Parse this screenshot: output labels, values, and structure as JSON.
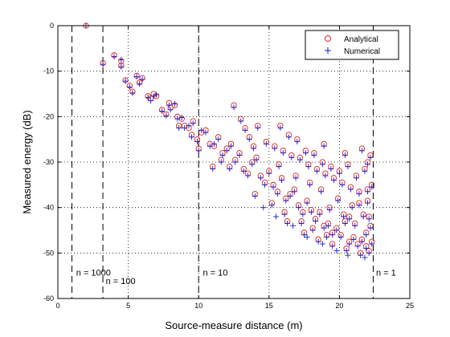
{
  "chart_data": {
    "type": "scatter",
    "title": "",
    "xlabel": "Source-measure distance (m)",
    "ylabel": "Measured energy (dB)",
    "xlim": [
      0,
      25
    ],
    "ylim": [
      -60,
      0
    ],
    "xticks": [
      "0",
      "5",
      "10",
      "15",
      "20",
      "25"
    ],
    "yticks": [
      "0",
      "-10",
      "-20",
      "-30",
      "-40",
      "-50",
      "-60"
    ],
    "grid": true,
    "legend_position": "top-right",
    "colors": {
      "Analytical": "#dd2222",
      "Numerical": "#1a1acc"
    },
    "series": [
      {
        "name": "Analytical",
        "marker": "circle",
        "points": [
          [
            2.0,
            0.0
          ],
          [
            3.2,
            -8.2
          ],
          [
            4.0,
            -6.5
          ],
          [
            4.5,
            -7.8
          ],
          [
            4.5,
            -8.8
          ],
          [
            4.8,
            -12.0
          ],
          [
            5.1,
            -13.2
          ],
          [
            5.3,
            -14.5
          ],
          [
            5.6,
            -11.0
          ],
          [
            5.8,
            -12.5
          ],
          [
            6.0,
            -11.5
          ],
          [
            6.4,
            -15.5
          ],
          [
            6.6,
            -16.0
          ],
          [
            7.0,
            -15.5
          ],
          [
            7.4,
            -18.5
          ],
          [
            7.7,
            -19.5
          ],
          [
            8.0,
            -18.0
          ],
          [
            8.3,
            -17.5
          ],
          [
            8.5,
            -20.0
          ],
          [
            8.8,
            -20.5
          ],
          [
            9.0,
            -22.0
          ],
          [
            9.3,
            -22.5
          ],
          [
            9.6,
            -21.0
          ],
          [
            9.9,
            -25.0
          ],
          [
            10.2,
            -23.5
          ],
          [
            10.5,
            -23.0
          ],
          [
            10.8,
            -26.0
          ],
          [
            11.1,
            -26.5
          ],
          [
            11.4,
            -24.5
          ],
          [
            11.7,
            -28.0
          ],
          [
            12.0,
            -27.0
          ],
          [
            12.3,
            -26.0
          ],
          [
            12.6,
            -29.5
          ],
          [
            12.9,
            -28.0
          ],
          [
            13.2,
            -31.5
          ],
          [
            13.5,
            -32.5
          ],
          [
            13.8,
            -30.0
          ],
          [
            14.1,
            -29.0
          ],
          [
            14.4,
            -33.0
          ],
          [
            14.7,
            -34.5
          ],
          [
            15.0,
            -32.0
          ],
          [
            15.3,
            -35.0
          ],
          [
            15.6,
            -36.5
          ],
          [
            15.9,
            -33.5
          ],
          [
            16.2,
            -38.0
          ],
          [
            16.5,
            -37.0
          ],
          [
            16.8,
            -36.0
          ],
          [
            17.1,
            -39.5
          ],
          [
            17.4,
            -41.0
          ],
          [
            17.7,
            -38.5
          ],
          [
            18.0,
            -40.5
          ],
          [
            18.3,
            -42.5
          ],
          [
            18.6,
            -41.0
          ],
          [
            18.9,
            -44.0
          ],
          [
            19.2,
            -43.5
          ],
          [
            19.5,
            -45.5
          ],
          [
            19.8,
            -44.5
          ],
          [
            20.1,
            -46.0
          ],
          [
            20.4,
            -43.0
          ],
          [
            20.7,
            -47.5
          ],
          [
            21.0,
            -46.5
          ],
          [
            21.3,
            -48.0
          ],
          [
            21.6,
            -47.0
          ],
          [
            21.9,
            -48.5
          ],
          [
            22.1,
            -49.5
          ],
          [
            22.3,
            -47.5
          ],
          [
            12.5,
            -17.5
          ],
          [
            13.0,
            -20.5
          ],
          [
            13.3,
            -22.5
          ],
          [
            13.6,
            -24.5
          ],
          [
            14.2,
            -22.0
          ],
          [
            14.8,
            -25.5
          ],
          [
            15.4,
            -26.5
          ],
          [
            16.0,
            -27.5
          ],
          [
            16.6,
            -28.5
          ],
          [
            17.2,
            -29.0
          ],
          [
            17.8,
            -30.5
          ],
          [
            18.4,
            -31.5
          ],
          [
            19.0,
            -32.5
          ],
          [
            19.6,
            -33.5
          ],
          [
            20.2,
            -34.5
          ],
          [
            20.8,
            -35.5
          ],
          [
            21.4,
            -36.5
          ],
          [
            22.0,
            -30.0
          ],
          [
            22.2,
            -28.5
          ],
          [
            15.8,
            -22.0
          ],
          [
            16.4,
            -24.0
          ],
          [
            17.0,
            -25.0
          ],
          [
            17.6,
            -27.5
          ],
          [
            18.2,
            -28.0
          ],
          [
            18.8,
            -30.0
          ],
          [
            19.4,
            -31.0
          ],
          [
            20.0,
            -32.0
          ],
          [
            20.6,
            -30.5
          ],
          [
            21.2,
            -33.0
          ],
          [
            21.8,
            -31.5
          ],
          [
            16.3,
            -43.0
          ],
          [
            17.5,
            -45.5
          ],
          [
            18.5,
            -47.0
          ],
          [
            19.5,
            -48.0
          ],
          [
            20.5,
            -49.0
          ],
          [
            21.5,
            -50.0
          ],
          [
            22.2,
            -44.0
          ],
          [
            14.0,
            -37.0
          ],
          [
            15.2,
            -39.0
          ],
          [
            16.1,
            -41.0
          ],
          [
            17.3,
            -43.0
          ],
          [
            18.1,
            -44.5
          ],
          [
            19.1,
            -46.0
          ],
          [
            20.3,
            -41.5
          ],
          [
            21.1,
            -43.5
          ],
          [
            21.7,
            -41.5
          ],
          [
            22.0,
            -38.5
          ],
          [
            22.3,
            -35.0
          ],
          [
            19.9,
            -38.0
          ],
          [
            20.9,
            -39.5
          ],
          [
            18.7,
            -36.0
          ],
          [
            17.9,
            -34.5
          ],
          [
            16.9,
            -33.0
          ],
          [
            11.0,
            -31.0
          ],
          [
            11.6,
            -29.5
          ],
          [
            12.2,
            -31.0
          ],
          [
            9.5,
            -24.0
          ],
          [
            8.6,
            -22.0
          ],
          [
            10.0,
            -27.0
          ],
          [
            6.8,
            -15.0
          ],
          [
            7.9,
            -17.0
          ],
          [
            13.9,
            -26.5
          ],
          [
            15.7,
            -30.5
          ],
          [
            18.9,
            -26.0
          ],
          [
            20.4,
            -28.0
          ],
          [
            21.6,
            -27.0
          ],
          [
            19.3,
            -40.0
          ],
          [
            20.7,
            -42.0
          ],
          [
            21.9,
            -45.5
          ],
          [
            22.1,
            -42.0
          ],
          [
            22.0,
            -36.0
          ],
          [
            21.4,
            -39.0
          ]
        ]
      },
      {
        "name": "Numerical",
        "marker": "plus",
        "points": [
          [
            2.0,
            0.0
          ],
          [
            3.2,
            -8.5
          ],
          [
            4.0,
            -6.8
          ],
          [
            4.5,
            -7.5
          ],
          [
            4.5,
            -9.0
          ],
          [
            4.8,
            -12.2
          ],
          [
            5.1,
            -13.5
          ],
          [
            5.3,
            -14.8
          ],
          [
            5.6,
            -11.2
          ],
          [
            5.8,
            -12.8
          ],
          [
            6.0,
            -11.8
          ],
          [
            6.4,
            -15.8
          ],
          [
            6.6,
            -16.5
          ],
          [
            7.0,
            -15.2
          ],
          [
            7.4,
            -18.8
          ],
          [
            7.7,
            -19.8
          ],
          [
            8.0,
            -18.5
          ],
          [
            8.3,
            -17.2
          ],
          [
            8.5,
            -20.5
          ],
          [
            8.8,
            -20.2
          ],
          [
            9.0,
            -22.5
          ],
          [
            9.3,
            -22.0
          ],
          [
            9.6,
            -21.5
          ],
          [
            9.9,
            -25.5
          ],
          [
            10.2,
            -23.0
          ],
          [
            10.5,
            -23.5
          ],
          [
            10.8,
            -26.5
          ],
          [
            11.1,
            -26.0
          ],
          [
            11.4,
            -25.0
          ],
          [
            11.7,
            -28.5
          ],
          [
            12.0,
            -27.5
          ],
          [
            12.3,
            -26.5
          ],
          [
            12.6,
            -30.0
          ],
          [
            12.9,
            -28.5
          ],
          [
            13.2,
            -32.0
          ],
          [
            13.5,
            -33.0
          ],
          [
            13.8,
            -30.5
          ],
          [
            14.1,
            -29.5
          ],
          [
            14.4,
            -33.5
          ],
          [
            14.7,
            -35.0
          ],
          [
            15.0,
            -32.5
          ],
          [
            15.3,
            -35.5
          ],
          [
            15.6,
            -37.0
          ],
          [
            15.9,
            -34.0
          ],
          [
            16.2,
            -38.5
          ],
          [
            16.5,
            -37.5
          ],
          [
            16.8,
            -36.5
          ],
          [
            17.1,
            -40.0
          ],
          [
            17.4,
            -41.5
          ],
          [
            17.7,
            -39.0
          ],
          [
            18.0,
            -41.0
          ],
          [
            18.3,
            -43.0
          ],
          [
            18.6,
            -41.5
          ],
          [
            18.9,
            -44.5
          ],
          [
            19.2,
            -44.0
          ],
          [
            19.5,
            -46.0
          ],
          [
            19.8,
            -45.0
          ],
          [
            20.1,
            -46.5
          ],
          [
            20.4,
            -43.5
          ],
          [
            20.7,
            -48.0
          ],
          [
            21.0,
            -47.0
          ],
          [
            21.3,
            -48.5
          ],
          [
            21.6,
            -47.5
          ],
          [
            21.9,
            -49.0
          ],
          [
            22.1,
            -50.0
          ],
          [
            22.3,
            -48.0
          ],
          [
            12.5,
            -18.0
          ],
          [
            13.0,
            -21.0
          ],
          [
            13.3,
            -23.0
          ],
          [
            13.6,
            -25.0
          ],
          [
            14.2,
            -22.5
          ],
          [
            14.8,
            -26.0
          ],
          [
            15.4,
            -27.0
          ],
          [
            16.0,
            -28.0
          ],
          [
            16.6,
            -29.0
          ],
          [
            17.2,
            -29.5
          ],
          [
            17.8,
            -31.0
          ],
          [
            18.4,
            -32.0
          ],
          [
            19.0,
            -33.0
          ],
          [
            19.6,
            -34.0
          ],
          [
            20.2,
            -35.0
          ],
          [
            20.8,
            -36.0
          ],
          [
            21.4,
            -37.0
          ],
          [
            22.0,
            -30.5
          ],
          [
            22.2,
            -29.0
          ],
          [
            15.8,
            -22.5
          ],
          [
            16.4,
            -24.5
          ],
          [
            17.0,
            -25.5
          ],
          [
            17.6,
            -28.0
          ],
          [
            18.2,
            -28.5
          ],
          [
            18.8,
            -30.5
          ],
          [
            19.4,
            -31.5
          ],
          [
            20.0,
            -32.5
          ],
          [
            20.6,
            -31.0
          ],
          [
            21.2,
            -33.5
          ],
          [
            21.8,
            -32.0
          ],
          [
            16.3,
            -43.5
          ],
          [
            17.5,
            -46.0
          ],
          [
            18.5,
            -47.5
          ],
          [
            19.5,
            -48.5
          ],
          [
            20.5,
            -49.5
          ],
          [
            21.5,
            -50.5
          ],
          [
            22.2,
            -44.5
          ],
          [
            14.0,
            -37.5
          ],
          [
            15.2,
            -39.5
          ],
          [
            16.1,
            -41.5
          ],
          [
            17.3,
            -43.5
          ],
          [
            18.1,
            -45.0
          ],
          [
            19.1,
            -46.5
          ],
          [
            20.3,
            -42.0
          ],
          [
            21.1,
            -44.0
          ],
          [
            21.7,
            -42.0
          ],
          [
            22.0,
            -39.0
          ],
          [
            22.3,
            -35.5
          ],
          [
            19.9,
            -38.5
          ],
          [
            20.9,
            -40.0
          ],
          [
            18.7,
            -36.5
          ],
          [
            17.9,
            -35.0
          ],
          [
            16.9,
            -33.5
          ],
          [
            11.0,
            -31.5
          ],
          [
            11.6,
            -30.0
          ],
          [
            12.2,
            -31.5
          ],
          [
            9.5,
            -24.5
          ],
          [
            8.6,
            -22.5
          ],
          [
            10.0,
            -27.5
          ],
          [
            6.8,
            -15.5
          ],
          [
            7.9,
            -17.5
          ],
          [
            13.9,
            -27.0
          ],
          [
            15.7,
            -31.0
          ],
          [
            18.9,
            -26.5
          ],
          [
            20.4,
            -28.5
          ],
          [
            21.6,
            -27.5
          ],
          [
            19.3,
            -40.5
          ],
          [
            20.7,
            -42.5
          ],
          [
            21.9,
            -46.0
          ],
          [
            22.1,
            -42.5
          ],
          [
            22.0,
            -36.5
          ],
          [
            21.4,
            -39.5
          ],
          [
            14.6,
            -40.0
          ],
          [
            15.5,
            -42.0
          ],
          [
            16.7,
            -44.0
          ],
          [
            17.7,
            -46.5
          ],
          [
            18.8,
            -48.0
          ],
          [
            19.8,
            -49.5
          ],
          [
            20.6,
            -50.5
          ],
          [
            21.8,
            -51.0
          ]
        ]
      }
    ],
    "vlines": [
      1.0,
      3.2,
      10.0,
      22.4
    ],
    "annotations": [
      {
        "text": "n = 1000",
        "x": 1.3,
        "y": -55
      },
      {
        "text": "n = 100",
        "x": 3.4,
        "y": -56.8
      },
      {
        "text": "n = 10",
        "x": 10.3,
        "y": -55
      },
      {
        "text": "n = 1",
        "x": 22.6,
        "y": -55
      }
    ]
  }
}
